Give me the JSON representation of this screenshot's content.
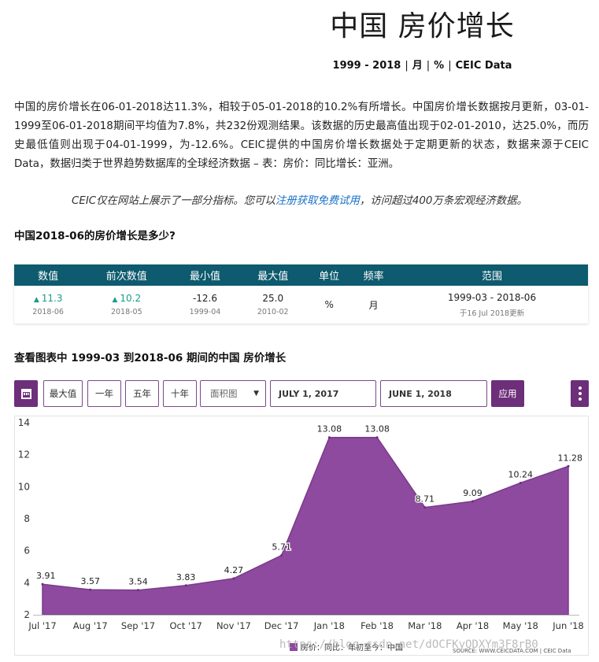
{
  "title": "中国 房价增长",
  "meta": {
    "range": "1999 - 2018",
    "freq": "月",
    "unit": "%",
    "source": "CEIC Data"
  },
  "description": "中国的房价增长在06-01-2018达11.3%，相较于05-01-2018的10.2%有所增长。中国房价增长数据按月更新，03-01-1999至06-01-2018期间平均值为7.8%，共232份观测结果。该数据的历史最高值出现于02-01-2010，达25.0%，而历史最低值则出现于04-01-1999，为-12.6%。CEIC提供的中国房价增长数据处于定期更新的状态，数据来源于CEIC Data，数据归类于世界趋势数据库的全球经济数据 – 表：房价：同比增长：亚洲。",
  "notice": {
    "before": "CEIC仅在网站上展示了一部分指标。您可以",
    "link": "注册获取免费试用",
    "after": "，访问超过400万条宏观经济数据。"
  },
  "question": "中国2018-06的房价增长是多少?",
  "stats": {
    "headers": [
      "数值",
      "前次数值",
      "最小值",
      "最大值",
      "单位",
      "频率",
      "范围"
    ],
    "value": "11.3",
    "value_date": "2018-06",
    "prev": "10.2",
    "prev_date": "2018-05",
    "min": "-12.6",
    "min_date": "1999-04",
    "max": "25.0",
    "max_date": "2010-02",
    "unit": "%",
    "freq": "月",
    "range": "1999-03 - 2018-06",
    "updated": "于16 Jul 2018更新"
  },
  "chart_heading": "查看图表中 1999-03 到2018-06 期间的中国 房价增长",
  "toolbar": {
    "max": "最大值",
    "one_year": "一年",
    "five_year": "五年",
    "ten_year": "十年",
    "chart_type": "面积图",
    "start": "JULY 1, 2017",
    "end": "JUNE 1, 2018",
    "apply": "应用"
  },
  "colors": {
    "area": "#8e4a9e",
    "header": "#0e5a6e",
    "accent": "#6d2e7a",
    "up": "#1a9a8a"
  },
  "chart_data": {
    "type": "area",
    "categories": [
      "Jul '17",
      "Aug '17",
      "Sep '17",
      "Oct '17",
      "Nov '17",
      "Dec '17",
      "Jan '18",
      "Feb '18",
      "Mar '18",
      "Apr '18",
      "May '18",
      "Jun '18"
    ],
    "series": [
      {
        "name": "房价：同比：年初至今：中国",
        "values": [
          3.91,
          3.57,
          3.54,
          3.83,
          4.27,
          5.71,
          13.08,
          13.08,
          8.71,
          9.09,
          10.24,
          11.28
        ]
      }
    ],
    "data_labels": [
      "3.91",
      "3.57",
      "3.54",
      "3.83",
      "4.27",
      "5.71",
      "13.08",
      "13.08",
      "8.71",
      "9.09",
      "10.24",
      "11.28"
    ],
    "yticks": [
      2,
      4,
      6,
      8,
      10,
      12,
      14
    ],
    "ylim": [
      2,
      14
    ],
    "grid": false,
    "legend": "bottom-center",
    "source": "SOURCE: WWW.CEICDATA.COM | CEIC Data"
  },
  "watermark": "https://blog.csdn.net/dOCFKyQDXYm3F8rB0"
}
